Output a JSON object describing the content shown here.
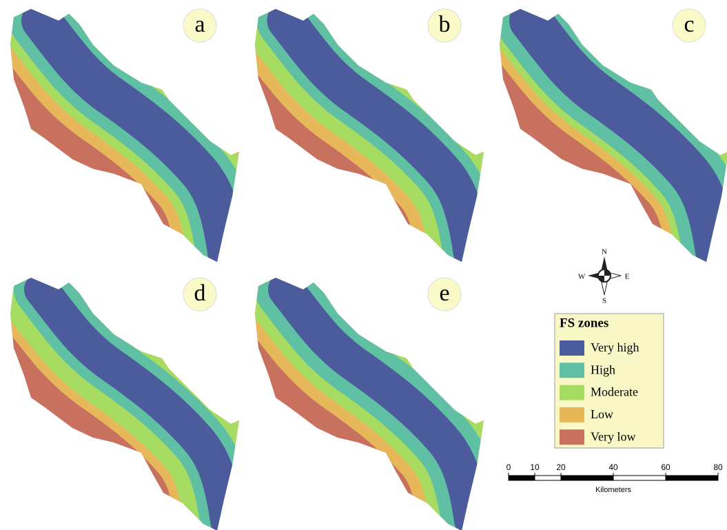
{
  "panels": [
    {
      "label": "a"
    },
    {
      "label": "b"
    },
    {
      "label": "c"
    },
    {
      "label": "d"
    },
    {
      "label": "e"
    }
  ],
  "compass": {
    "north": "N",
    "south": "S",
    "east": "E",
    "west": "W"
  },
  "legend": {
    "title": "FS zones",
    "items": [
      {
        "label": "Very high",
        "color": "#4b5b9c"
      },
      {
        "label": "High",
        "color": "#5fc0a4"
      },
      {
        "label": "Moderate",
        "color": "#a6dc62"
      },
      {
        "label": "Low",
        "color": "#e6b85a"
      },
      {
        "label": "Very low",
        "color": "#c8715e"
      }
    ]
  },
  "scale": {
    "ticks": [
      0,
      10,
      20,
      40,
      60,
      80
    ],
    "unit": "Kilometers"
  }
}
